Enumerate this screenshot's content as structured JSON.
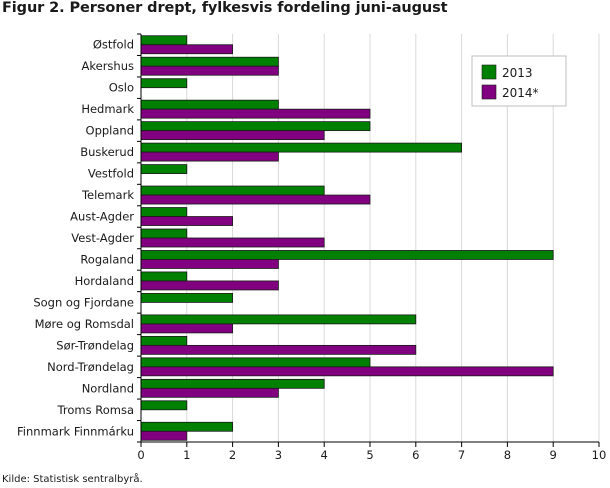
{
  "page": {
    "title": "Figur 2. Personer drept, fylkesvis fordeling juni-august",
    "source": "Kilde: Statistisk sentralbyrå."
  },
  "chart_data": {
    "type": "bar",
    "orientation": "horizontal",
    "title": "Figur 2. Personer drept, fylkesvis fordeling juni-august",
    "xlabel": "",
    "ylabel": "",
    "xlim": [
      0,
      10
    ],
    "xticks": [
      0,
      1,
      2,
      3,
      4,
      5,
      6,
      7,
      8,
      9,
      10
    ],
    "grid": true,
    "legend_position": "top-right",
    "categories": [
      "Østfold",
      "Akershus",
      "Oslo",
      "Hedmark",
      "Oppland",
      "Buskerud",
      "Vestfold",
      "Telemark",
      "Aust-Agder",
      "Vest-Agder",
      "Rogaland",
      "Hordaland",
      "Sogn og Fjordane",
      "Møre og Romsdal",
      "Sør-Trøndelag",
      "Nord-Trøndelag",
      "Nordland",
      "Troms Romsa",
      "Finnmark Finnmárku"
    ],
    "series": [
      {
        "name": "2013",
        "color": "#008000",
        "values": [
          1,
          3,
          1,
          3,
          5,
          7,
          1,
          4,
          1,
          1,
          9,
          1,
          2,
          6,
          1,
          5,
          4,
          1,
          2
        ]
      },
      {
        "name": "2014*",
        "color": "#800080",
        "values": [
          2,
          3,
          0,
          5,
          4,
          3,
          0,
          5,
          2,
          4,
          3,
          3,
          0,
          2,
          6,
          9,
          3,
          0,
          1
        ]
      }
    ]
  }
}
